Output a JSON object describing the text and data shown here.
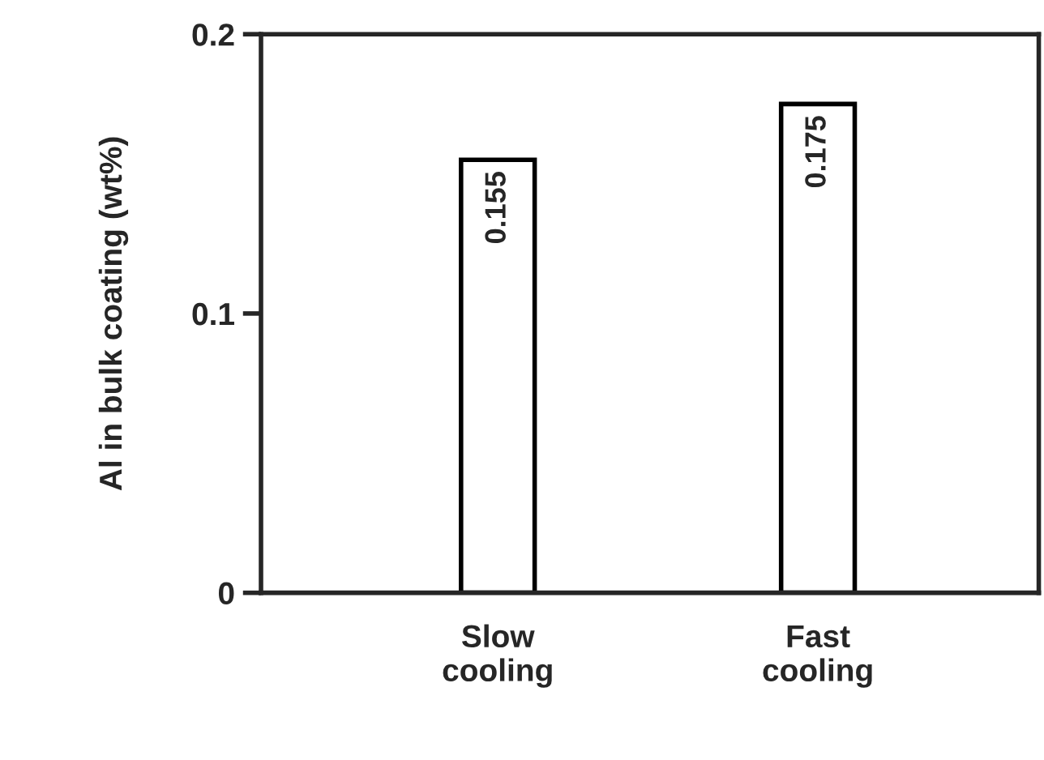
{
  "chart_data": {
    "type": "bar",
    "ylabel": "Al in bulk coating (wt%)",
    "categories": [
      "Slow\ncooling",
      "Fast\ncooling"
    ],
    "values": [
      0.155,
      0.175
    ],
    "color": "#ffffff",
    "ylim": [
      0,
      0.2
    ],
    "yticks": [
      0,
      0.1,
      0.2
    ],
    "data_labels": true,
    "grid": false,
    "legend": false
  }
}
